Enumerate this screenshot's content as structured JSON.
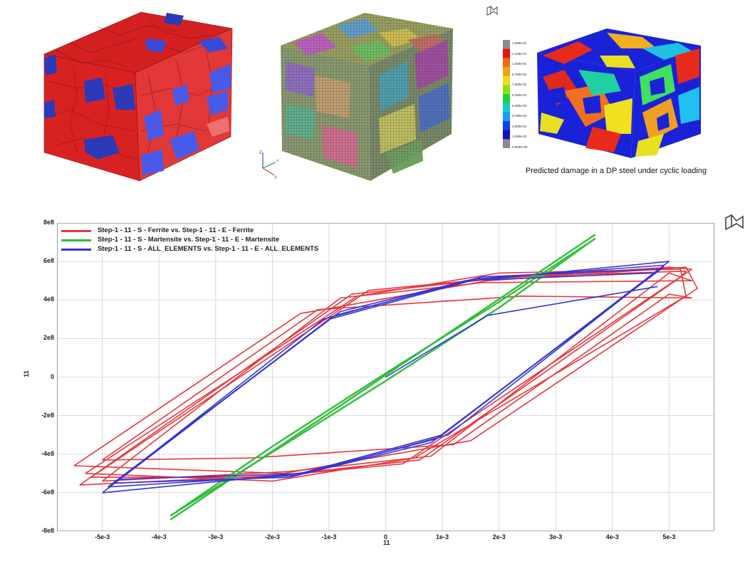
{
  "caption": "Predicted damage in a DP steel under cyclic loading",
  "colorbar": {
    "labels": [
      "1.250e-01",
      "1.125e-01",
      "1.000e-01",
      "8.750e-02",
      "7.500e-02",
      "6.250e-02",
      "5.000e-02",
      "3.750e-02",
      "2.500e-02",
      "1.250e-02",
      "0.000e+00"
    ],
    "colors": [
      "#8a8a8a",
      "#e81010",
      "#f06a10",
      "#f0a010",
      "#e8e010",
      "#90e010",
      "#20d040",
      "#10d0c0",
      "#10a0f0",
      "#1040f0",
      "#1010c0",
      "#8a8a8a"
    ]
  },
  "icons": {
    "top_logo": "simulia-logo-icon",
    "plot_logo": "simulia-logo-icon",
    "triad": "xyz-triad-icon"
  },
  "colors": {
    "ferrite": "#e8373c",
    "martensite": "#2fbf3a",
    "all_elements": "#3535d6",
    "grid": "#d0d0d0"
  },
  "chart_data": {
    "type": "line",
    "title": "",
    "xlabel": "11",
    "ylabel": "11",
    "xlim": [
      -0.0058,
      0.0058
    ],
    "ylim": [
      -800000000,
      800000000
    ],
    "x_ticks": [
      -0.005,
      -0.004,
      -0.003,
      -0.002,
      -0.001,
      0,
      0.001,
      0.002,
      0.003,
      0.004,
      0.005
    ],
    "x_tick_labels": [
      "-5e-3",
      "-4e-3",
      "-3e-3",
      "-2e-3",
      "-1e-3",
      "0",
      "1e-3",
      "2e-3",
      "3e-3",
      "4e-3",
      "5e-3"
    ],
    "y_ticks": [
      800000000,
      600000000,
      400000000,
      200000000,
      0,
      -200000000,
      -400000000,
      -600000000,
      -800000000
    ],
    "y_tick_labels": [
      "8e8",
      "6e8",
      "4e8",
      "2e8",
      "0",
      "-2e8",
      "-4e8",
      "-6e8",
      "-8e8"
    ],
    "grid": true,
    "legend_position": "top-left",
    "series": [
      {
        "name": "Step-1 - 11 - S - Ferrite vs. Step-1 - 11 - E - Ferrite",
        "color": "#e8373c",
        "loops": [
          {
            "x": [
              -0.0055,
              -0.0015,
              0.0018,
              0.0053,
              0.0055,
              0.0015,
              -0.0018,
              -0.0055
            ],
            "y": [
              -460000000,
              330000000,
              500000000,
              570000000,
              460000000,
              -330000000,
              -500000000,
              -460000000
            ]
          },
          {
            "x": [
              -0.0053,
              -0.0005,
              0.002,
              0.0052,
              0.0053,
              0.0005,
              -0.002,
              -0.0053
            ],
            "y": [
              -500000000,
              420000000,
              540000000,
              560000000,
              420000000,
              -420000000,
              -540000000,
              -500000000
            ]
          },
          {
            "x": [
              -0.0052,
              -0.0003,
              0.0022,
              0.0053,
              0.0052,
              0.0003,
              -0.0022,
              -0.0052
            ],
            "y": [
              -520000000,
              450000000,
              520000000,
              550000000,
              520000000,
              -450000000,
              -520000000,
              -520000000
            ]
          },
          {
            "x": [
              -0.0054,
              -0.0006,
              0.0019,
              0.005,
              0.0054,
              0.0006,
              -0.0019,
              -0.0054
            ],
            "y": [
              -560000000,
              430000000,
              510000000,
              570000000,
              560000000,
              -430000000,
              -510000000,
              -560000000
            ]
          },
          {
            "x": [
              -0.005,
              -0.0008,
              0.0017,
              0.0054,
              0.005,
              0.0008,
              -0.0017,
              -0.005
            ],
            "y": [
              -540000000,
              410000000,
              490000000,
              500000000,
              540000000,
              -410000000,
              -490000000,
              -540000000
            ]
          },
          {
            "x": [
              -0.005,
              -0.0012,
              0.0024,
              0.0054,
              0.005,
              0.0012,
              -0.0024,
              -0.005
            ],
            "y": [
              -430000000,
              350000000,
              420000000,
              410000000,
              430000000,
              -350000000,
              -420000000,
              -430000000
            ]
          }
        ]
      },
      {
        "name": "Step-1 - 11 - S - Martensite vs. Step-1 - 11 - E - Martensite",
        "color": "#2fbf3a",
        "loops": [
          {
            "x": [
              -0.0038,
              0.0037
            ],
            "y": [
              -740000000,
              740000000
            ]
          },
          {
            "x": [
              -0.0038,
              -0.002,
              0.0,
              0.002,
              0.0037
            ],
            "y": [
              -720000000,
              -390000000,
              -20000000,
              360000000,
              720000000
            ]
          },
          {
            "x": [
              -0.0037,
              -0.002,
              0.0,
              0.002,
              0.0036
            ],
            "y": [
              -700000000,
              -360000000,
              20000000,
              390000000,
              700000000
            ]
          }
        ]
      },
      {
        "name": "Step-1 - 11 - S - ALL_ELEMENTS vs. Step-1 - 11 - E - ALL_ELEMENTS",
        "color": "#3535d6",
        "loops": [
          {
            "x": [
              0.0,
              0.0018,
              0.0048
            ],
            "y": [
              0,
              320000000,
              470000000
            ]
          },
          {
            "x": [
              -0.005,
              -0.001,
              0.0015,
              0.005,
              0.005,
              0.001,
              -0.0015,
              -0.005
            ],
            "y": [
              -600000000,
              300000000,
              500000000,
              600000000,
              600000000,
              -300000000,
              -500000000,
              -600000000
            ]
          },
          {
            "x": [
              -0.0049,
              -0.0009,
              0.0016,
              0.0049,
              0.0049,
              0.0009,
              -0.0016,
              -0.0049
            ],
            "y": [
              -570000000,
              320000000,
              510000000,
              580000000,
              570000000,
              -320000000,
              -510000000,
              -570000000
            ]
          },
          {
            "x": [
              -0.0048,
              -0.0008,
              0.0017,
              0.0048,
              0.0048,
              0.0008,
              -0.0017,
              -0.0048
            ],
            "y": [
              -550000000,
              340000000,
              520000000,
              560000000,
              550000000,
              -340000000,
              -520000000,
              -550000000
            ]
          },
          {
            "x": [
              -0.0047,
              -0.0011,
              0.0014,
              0.0047,
              0.0047,
              0.0011,
              -0.0014,
              -0.0047
            ],
            "y": [
              -530000000,
              300000000,
              500000000,
              540000000,
              530000000,
              -300000000,
              -500000000,
              -530000000
            ]
          }
        ]
      }
    ]
  }
}
